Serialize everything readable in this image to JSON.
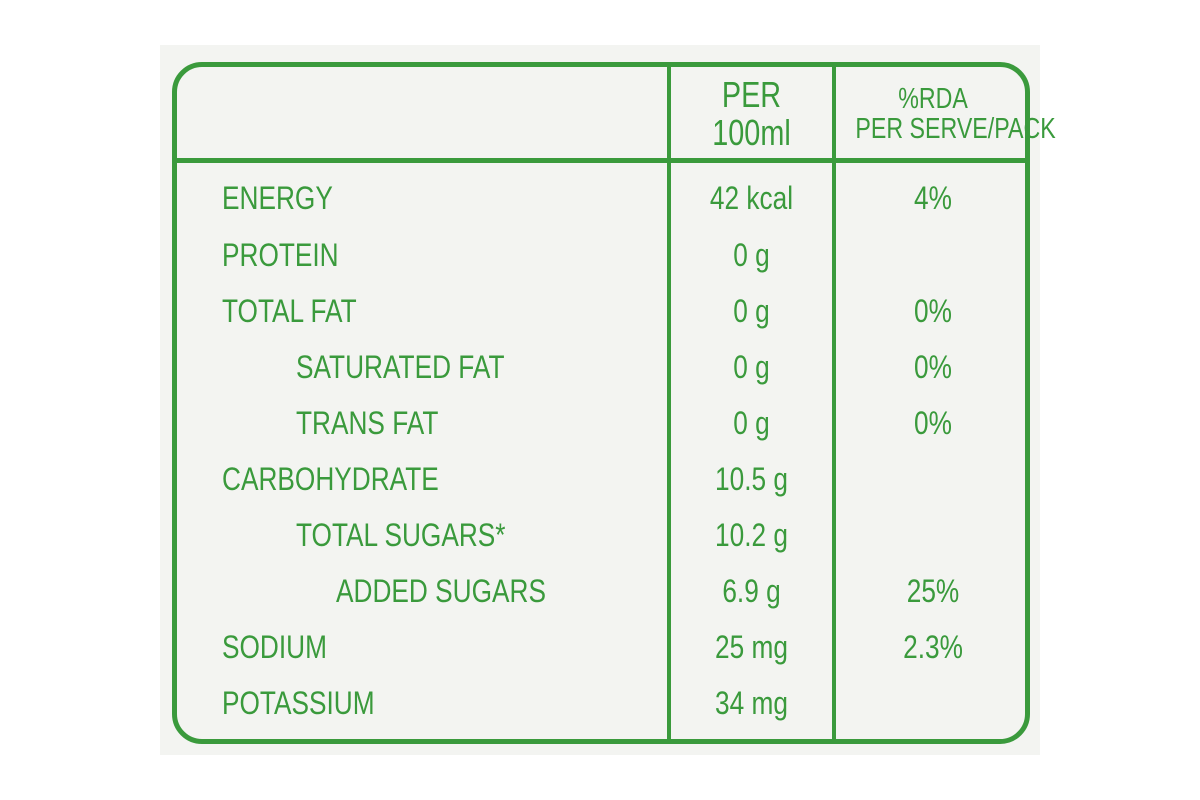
{
  "header": {
    "per_line1": "PER",
    "per_line2": "100ml",
    "rda_line1": "%RDA",
    "rda_line2": "PER SERVE/PACK"
  },
  "rows": [
    {
      "nutrient": "ENERGY",
      "per_100ml": "42 kcal",
      "rda": "4%"
    },
    {
      "nutrient": "PROTEIN",
      "per_100ml": "0 g",
      "rda": ""
    },
    {
      "nutrient": "TOTAL FAT",
      "per_100ml": "0 g",
      "rda": "0%"
    },
    {
      "nutrient": "SATURATED FAT",
      "per_100ml": "0 g",
      "rda": "0%"
    },
    {
      "nutrient": "TRANS FAT",
      "per_100ml": "0 g",
      "rda": "0%"
    },
    {
      "nutrient": "CARBOHYDRATE",
      "per_100ml": "10.5 g",
      "rda": ""
    },
    {
      "nutrient": "TOTAL SUGARS*",
      "per_100ml": "10.2 g",
      "rda": ""
    },
    {
      "nutrient": "ADDED SUGARS",
      "per_100ml": "6.9 g",
      "rda": "25%"
    },
    {
      "nutrient": "SODIUM",
      "per_100ml": "25 mg",
      "rda": "2.3%"
    },
    {
      "nutrient": "POTASSIUM",
      "per_100ml": "34 mg",
      "rda": ""
    }
  ],
  "colors": {
    "ink": "#3a9a3c",
    "label_background": "#f3f4f1"
  }
}
